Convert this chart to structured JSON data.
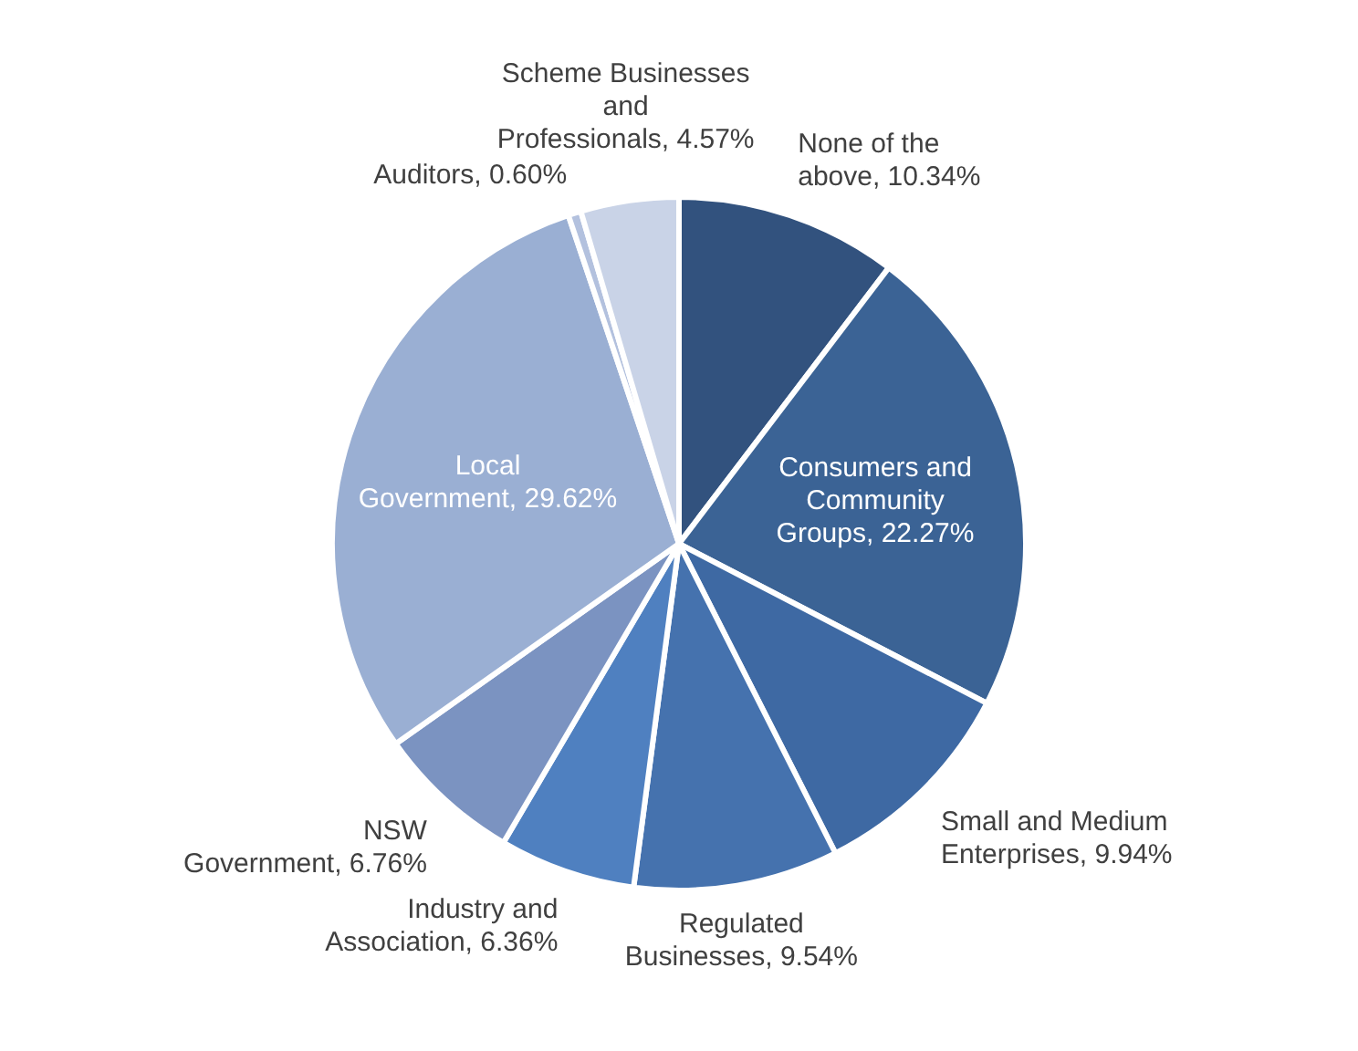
{
  "chart_data": {
    "type": "pie",
    "categories": [
      "None of the above",
      "Consumers and Community Groups",
      "Small and Medium Enterprises",
      "Regulated Businesses",
      "Industry and Association",
      "NSW Government",
      "Local Government",
      "Auditors",
      "Scheme Businesses and Professionals"
    ],
    "values": [
      10.34,
      22.27,
      9.94,
      9.54,
      6.36,
      6.76,
      29.62,
      0.6,
      4.57
    ],
    "value_labels": [
      "10.34%",
      "22.27%",
      "9.94%",
      "9.54%",
      "6.36%",
      "6.76%",
      "29.62%",
      "0.60%",
      "4.57%"
    ],
    "colors": [
      "#32527e",
      "#3b6395",
      "#3e69a3",
      "#4572ae",
      "#4f80c0",
      "#7b93c1",
      "#9aafd3",
      "#b3c1de",
      "#c9d3e7"
    ]
  }
}
